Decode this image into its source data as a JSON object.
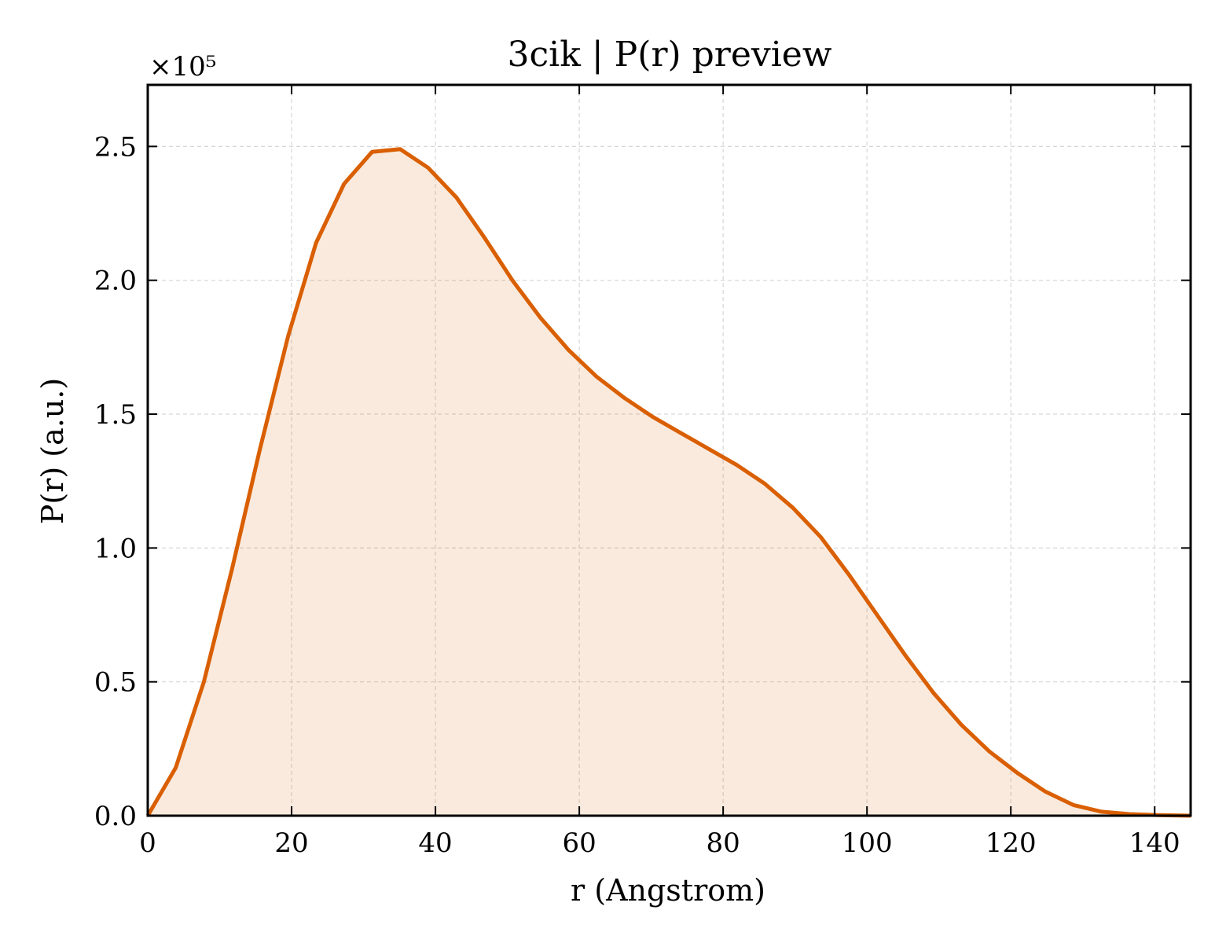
{
  "chart_data": {
    "type": "area",
    "title": "3cik | P(r) preview",
    "xlabel": "r (Angstrom)",
    "ylabel": "P(r) (a.u.)",
    "y_multiplier_label": "×10⁵",
    "xlim": [
      0,
      145
    ],
    "ylim": [
      0,
      2.73
    ],
    "x_ticks": [
      0,
      20,
      40,
      60,
      80,
      100,
      120,
      140
    ],
    "y_ticks": [
      0.0,
      0.5,
      1.0,
      1.5,
      2.0,
      2.5
    ],
    "grid": true,
    "legend": "none",
    "series": [
      {
        "color": "#d95f02",
        "fill_color": "#d95f02",
        "x": [
          0,
          3.9,
          7.8,
          11.7,
          15.6,
          19.5,
          23.4,
          27.3,
          31.2,
          35.1,
          39.0,
          42.9,
          46.8,
          50.7,
          54.6,
          58.5,
          62.4,
          66.3,
          70.2,
          74.1,
          78.0,
          81.9,
          85.8,
          89.7,
          93.6,
          97.5,
          101.4,
          105.3,
          109.2,
          113.1,
          117.0,
          120.9,
          124.8,
          128.7,
          132.6,
          136.5,
          140.4,
          145
        ],
        "y": [
          0.0,
          0.18,
          0.5,
          0.92,
          1.37,
          1.79,
          2.14,
          2.36,
          2.48,
          2.49,
          2.42,
          2.31,
          2.16,
          2.0,
          1.86,
          1.74,
          1.64,
          1.56,
          1.49,
          1.43,
          1.37,
          1.31,
          1.24,
          1.15,
          1.04,
          0.9,
          0.75,
          0.6,
          0.46,
          0.34,
          0.24,
          0.16,
          0.09,
          0.04,
          0.015,
          0.006,
          0.002,
          0.0
        ]
      }
    ]
  }
}
